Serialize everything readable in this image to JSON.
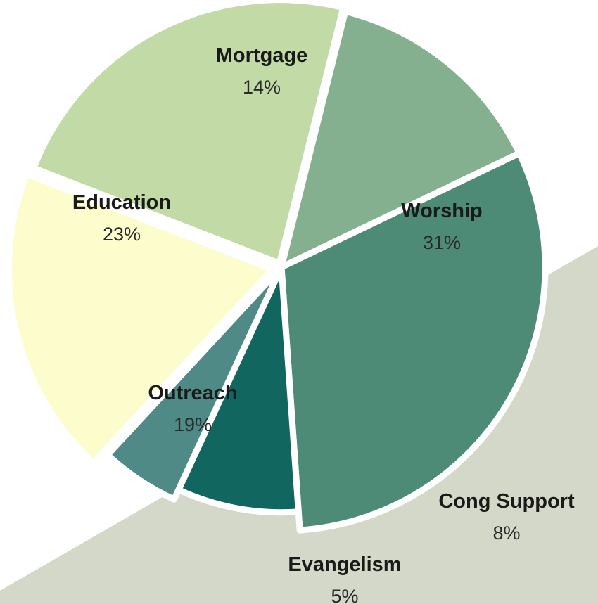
{
  "chart_data": {
    "type": "pie",
    "title": "",
    "slices": [
      {
        "label": "Mortgage",
        "value": 14,
        "display": "14%",
        "color": "#85b08f"
      },
      {
        "label": "Worship",
        "value": 31,
        "display": "31%",
        "color": "#4d8b76"
      },
      {
        "label": "Cong Support",
        "value": 8,
        "display": "8%",
        "color": "#11665f"
      },
      {
        "label": "Evangelism",
        "value": 5,
        "display": "5%",
        "color": "#4f8a87"
      },
      {
        "label": "Outreach",
        "value": 19,
        "display": "19%",
        "color": "#fdfccc"
      },
      {
        "label": "Education",
        "value": 23,
        "display": "23%",
        "color": "#c2daa6"
      }
    ],
    "legend": "none",
    "background_band_color": "#d4d8c8"
  }
}
